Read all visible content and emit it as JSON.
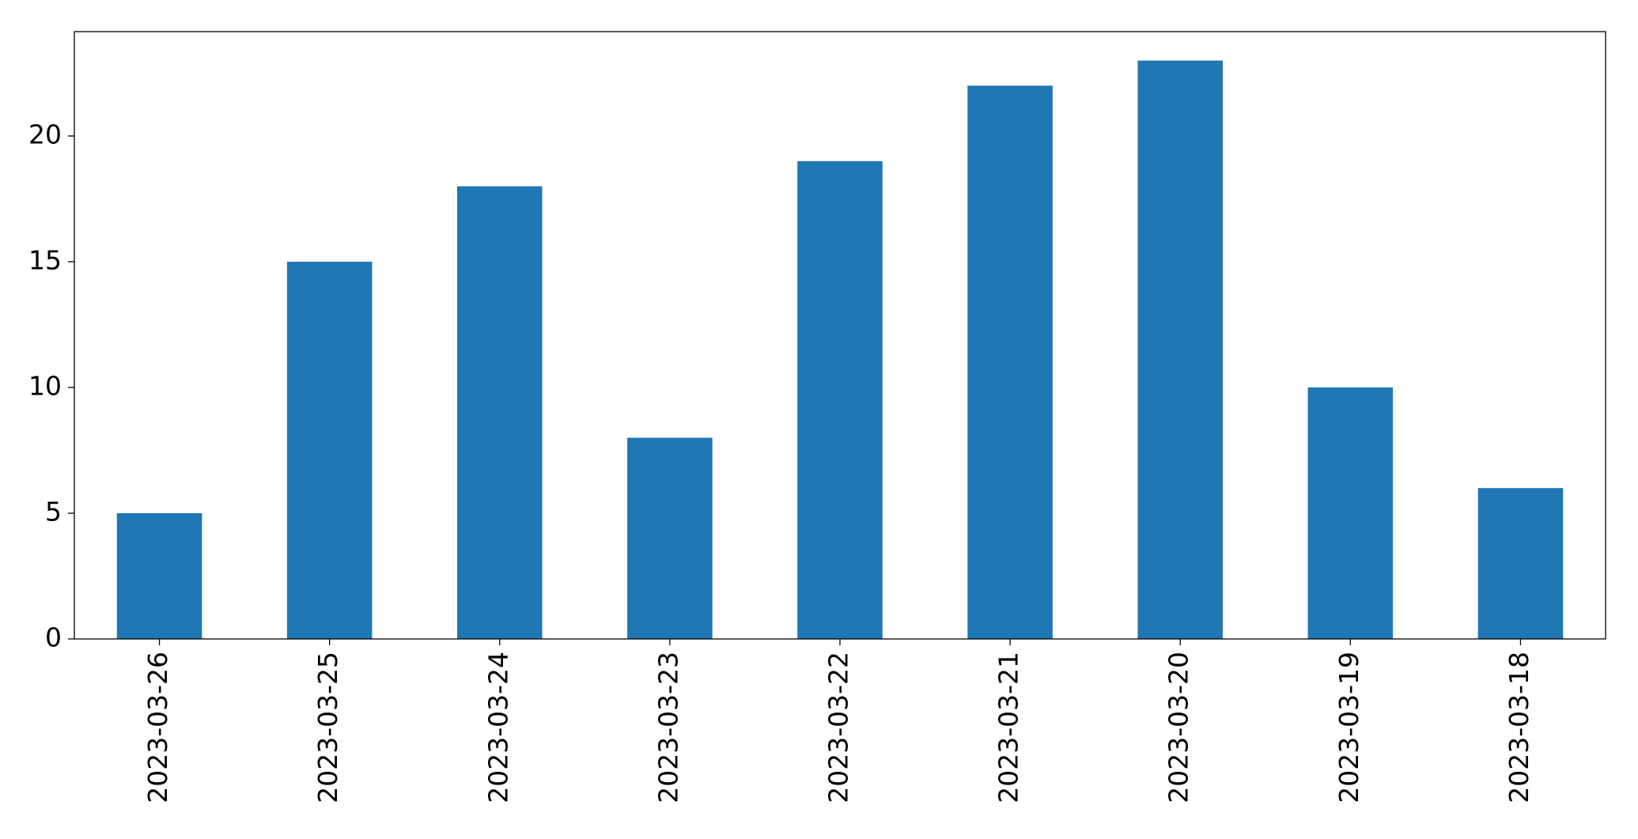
{
  "chart_data": {
    "type": "bar",
    "categories": [
      "2023-03-26",
      "2023-03-25",
      "2023-03-24",
      "2023-03-23",
      "2023-03-22",
      "2023-03-21",
      "2023-03-20",
      "2023-03-19",
      "2023-03-18"
    ],
    "values": [
      5,
      15,
      18,
      8,
      19,
      22,
      23,
      10,
      6
    ],
    "color": "#1f77b4",
    "ylim": [
      0,
      24.15
    ],
    "yticks": [
      0,
      5,
      10,
      15,
      20
    ],
    "grid": false
  }
}
